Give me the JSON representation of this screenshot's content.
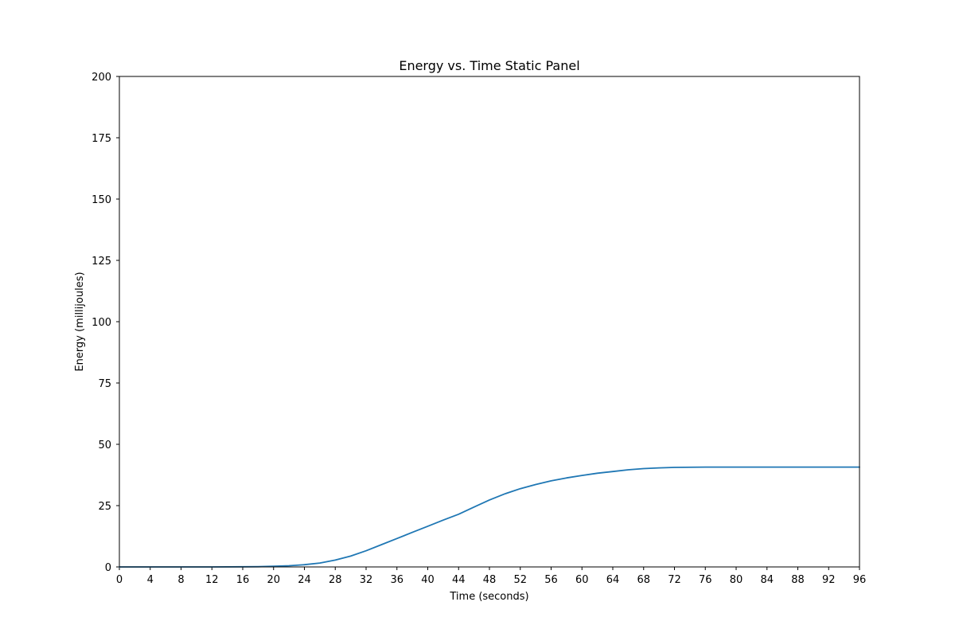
{
  "chart_data": {
    "type": "line",
    "title": "Energy vs. Time Static Panel",
    "xlabel": "Time (seconds)",
    "ylabel": "Energy (millijoules)",
    "xlim": [
      0,
      96
    ],
    "ylim": [
      0,
      200
    ],
    "xticks": [
      0,
      4,
      8,
      12,
      16,
      20,
      24,
      28,
      32,
      36,
      40,
      44,
      48,
      52,
      56,
      60,
      64,
      68,
      72,
      76,
      80,
      84,
      88,
      92,
      96
    ],
    "yticks": [
      0,
      25,
      50,
      75,
      100,
      125,
      150,
      175,
      200
    ],
    "grid": false,
    "colors": {
      "line": "#1f77b4"
    },
    "series": [
      {
        "x": [
          0,
          4,
          8,
          12,
          16,
          18,
          20,
          22,
          24,
          26,
          28,
          30,
          32,
          34,
          36,
          38,
          40,
          42,
          44,
          46,
          48,
          50,
          52,
          54,
          56,
          58,
          60,
          62,
          64,
          66,
          68,
          70,
          72,
          76,
          80,
          84,
          88,
          92,
          96
        ],
        "values": [
          0,
          0,
          0,
          0,
          0.05,
          0.1,
          0.25,
          0.5,
          0.9,
          1.6,
          2.8,
          4.4,
          6.6,
          9.1,
          11.6,
          14.1,
          16.6,
          19.1,
          21.5,
          24.4,
          27.3,
          29.8,
          31.9,
          33.6,
          35.1,
          36.3,
          37.3,
          38.2,
          38.9,
          39.6,
          40.1,
          40.4,
          40.6,
          40.7,
          40.7,
          40.7,
          40.7,
          40.7,
          40.7
        ]
      }
    ]
  }
}
